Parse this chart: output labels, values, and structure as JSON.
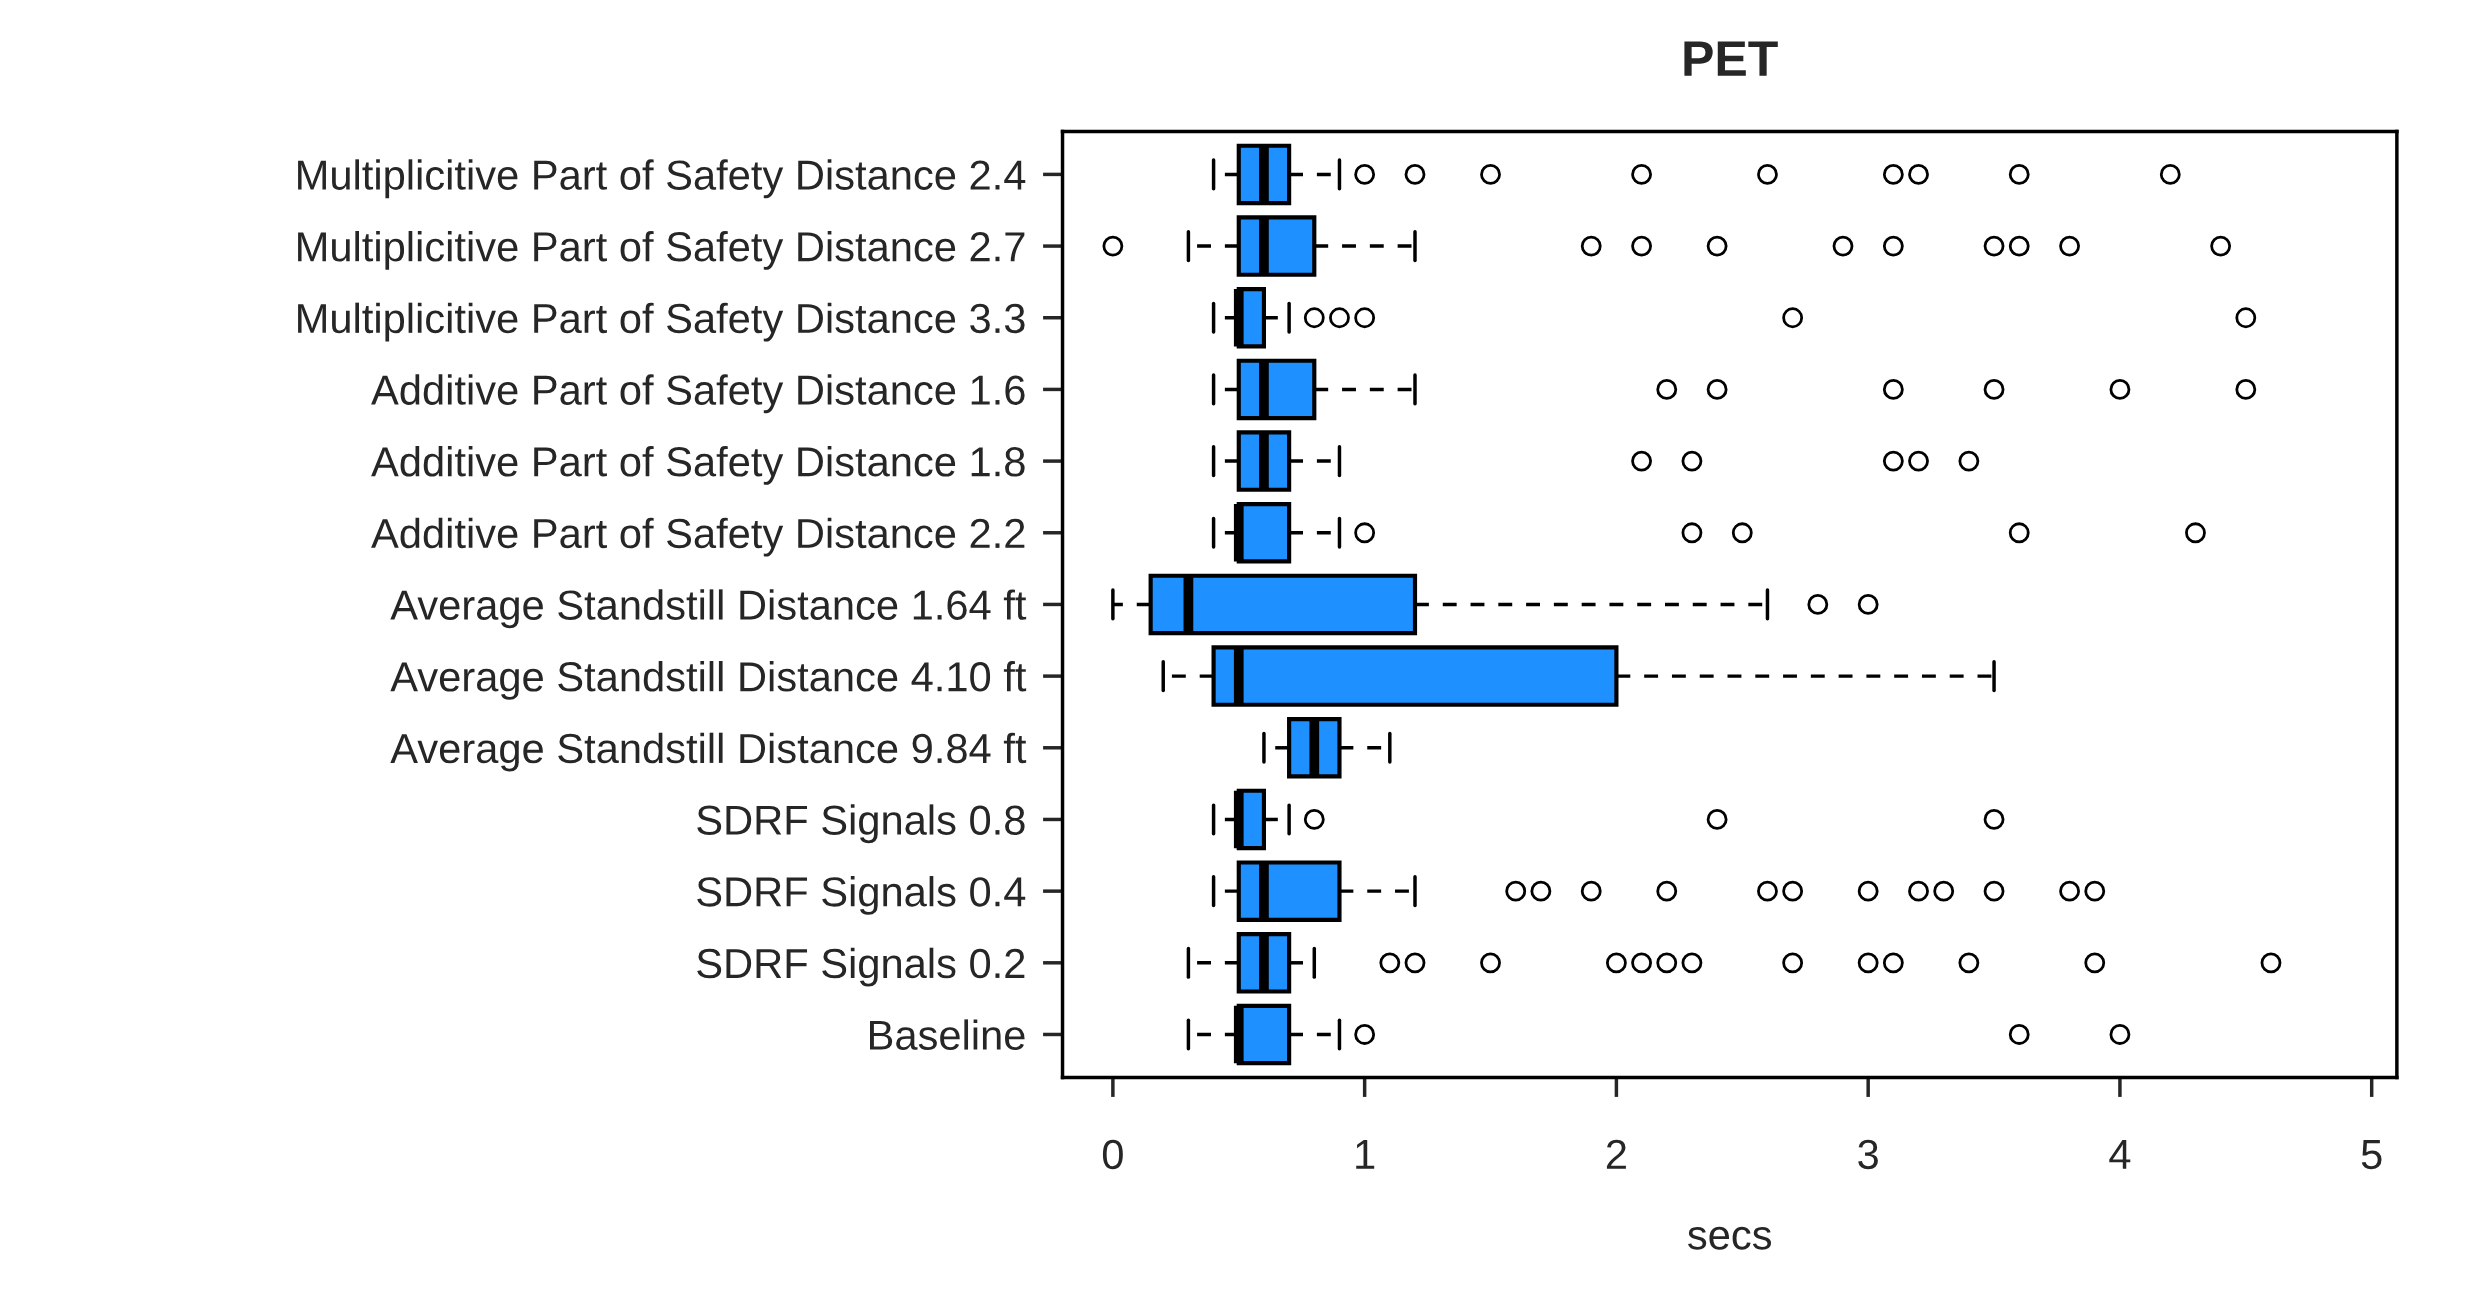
{
  "chart_data": {
    "type": "box",
    "title": "PET",
    "xlabel": "secs",
    "orientation": "horizontal",
    "color": "#1e90ff",
    "marker": "circle",
    "categories": [
      "Multiplicitive Part of Safety Distance 2.4",
      "Multiplicitive Part of Safety Distance 2.7",
      "Multiplicitive Part of Safety Distance 3.3",
      "Additive Part of Safety Distance 1.6",
      "Additive Part of Safety Distance 1.8",
      "Additive Part of Safety Distance 2.2",
      "Average Standstill Distance 1.64 ft",
      "Average Standstill Distance 4.10 ft",
      "Average Standstill Distance 9.84 ft",
      "SDRF Signals 0.8",
      "SDRF Signals 0.4",
      "SDRF Signals 0.2",
      "Baseline"
    ],
    "boxes": [
      {
        "low": 0.4,
        "q1": 0.5,
        "median": 0.6,
        "q3": 0.7,
        "high": 0.9,
        "outliers": [
          1.0,
          1.2,
          1.5,
          2.1,
          2.6,
          3.1,
          3.2,
          3.6,
          4.2
        ]
      },
      {
        "low": 0.3,
        "q1": 0.5,
        "median": 0.6,
        "q3": 0.8,
        "high": 1.2,
        "outliers": [
          0.0,
          1.9,
          2.1,
          2.4,
          2.9,
          3.1,
          3.5,
          3.6,
          3.8,
          4.4
        ]
      },
      {
        "low": 0.4,
        "q1": 0.5,
        "median": 0.5,
        "q3": 0.6,
        "high": 0.7,
        "outliers": [
          0.8,
          0.9,
          1.0,
          2.7,
          4.5
        ]
      },
      {
        "low": 0.4,
        "q1": 0.5,
        "median": 0.6,
        "q3": 0.8,
        "high": 1.2,
        "outliers": [
          2.2,
          2.4,
          3.1,
          3.5,
          4.0,
          4.5
        ]
      },
      {
        "low": 0.4,
        "q1": 0.5,
        "median": 0.6,
        "q3": 0.7,
        "high": 0.9,
        "outliers": [
          2.1,
          2.3,
          3.1,
          3.2,
          3.4
        ]
      },
      {
        "low": 0.4,
        "q1": 0.5,
        "median": 0.5,
        "q3": 0.7,
        "high": 0.9,
        "outliers": [
          1.0,
          2.3,
          2.5,
          3.6,
          4.3
        ]
      },
      {
        "low": 0.0,
        "q1": 0.15,
        "median": 0.3,
        "q3": 1.2,
        "high": 2.6,
        "outliers": [
          2.8,
          3.0
        ]
      },
      {
        "low": 0.2,
        "q1": 0.4,
        "median": 0.5,
        "q3": 2.0,
        "high": 3.5
      },
      {
        "low": 0.6,
        "q1": 0.7,
        "median": 0.8,
        "q3": 0.9,
        "high": 1.1
      },
      {
        "low": 0.4,
        "q1": 0.5,
        "median": 0.5,
        "q3": 0.6,
        "high": 0.7,
        "outliers": [
          0.8,
          2.4,
          3.5
        ]
      },
      {
        "low": 0.4,
        "q1": 0.5,
        "median": 0.6,
        "q3": 0.9,
        "high": 1.2,
        "outliers": [
          1.6,
          1.7,
          1.9,
          2.2,
          2.6,
          2.7,
          3.0,
          3.2,
          3.3,
          3.5,
          3.8,
          3.9
        ]
      },
      {
        "low": 0.3,
        "q1": 0.5,
        "median": 0.6,
        "q3": 0.7,
        "high": 0.8,
        "outliers": [
          1.1,
          1.2,
          1.5,
          2.0,
          2.1,
          2.2,
          2.3,
          2.7,
          3.0,
          3.1,
          3.4,
          3.9,
          4.6
        ]
      },
      {
        "low": 0.3,
        "q1": 0.5,
        "median": 0.5,
        "q3": 0.7,
        "high": 0.9,
        "outliers": [
          1.0,
          3.6,
          4.0
        ]
      }
    ],
    "xlim": [
      -0.2,
      5.1
    ],
    "xticks": [
      0,
      1,
      2,
      3,
      4,
      5
    ]
  }
}
